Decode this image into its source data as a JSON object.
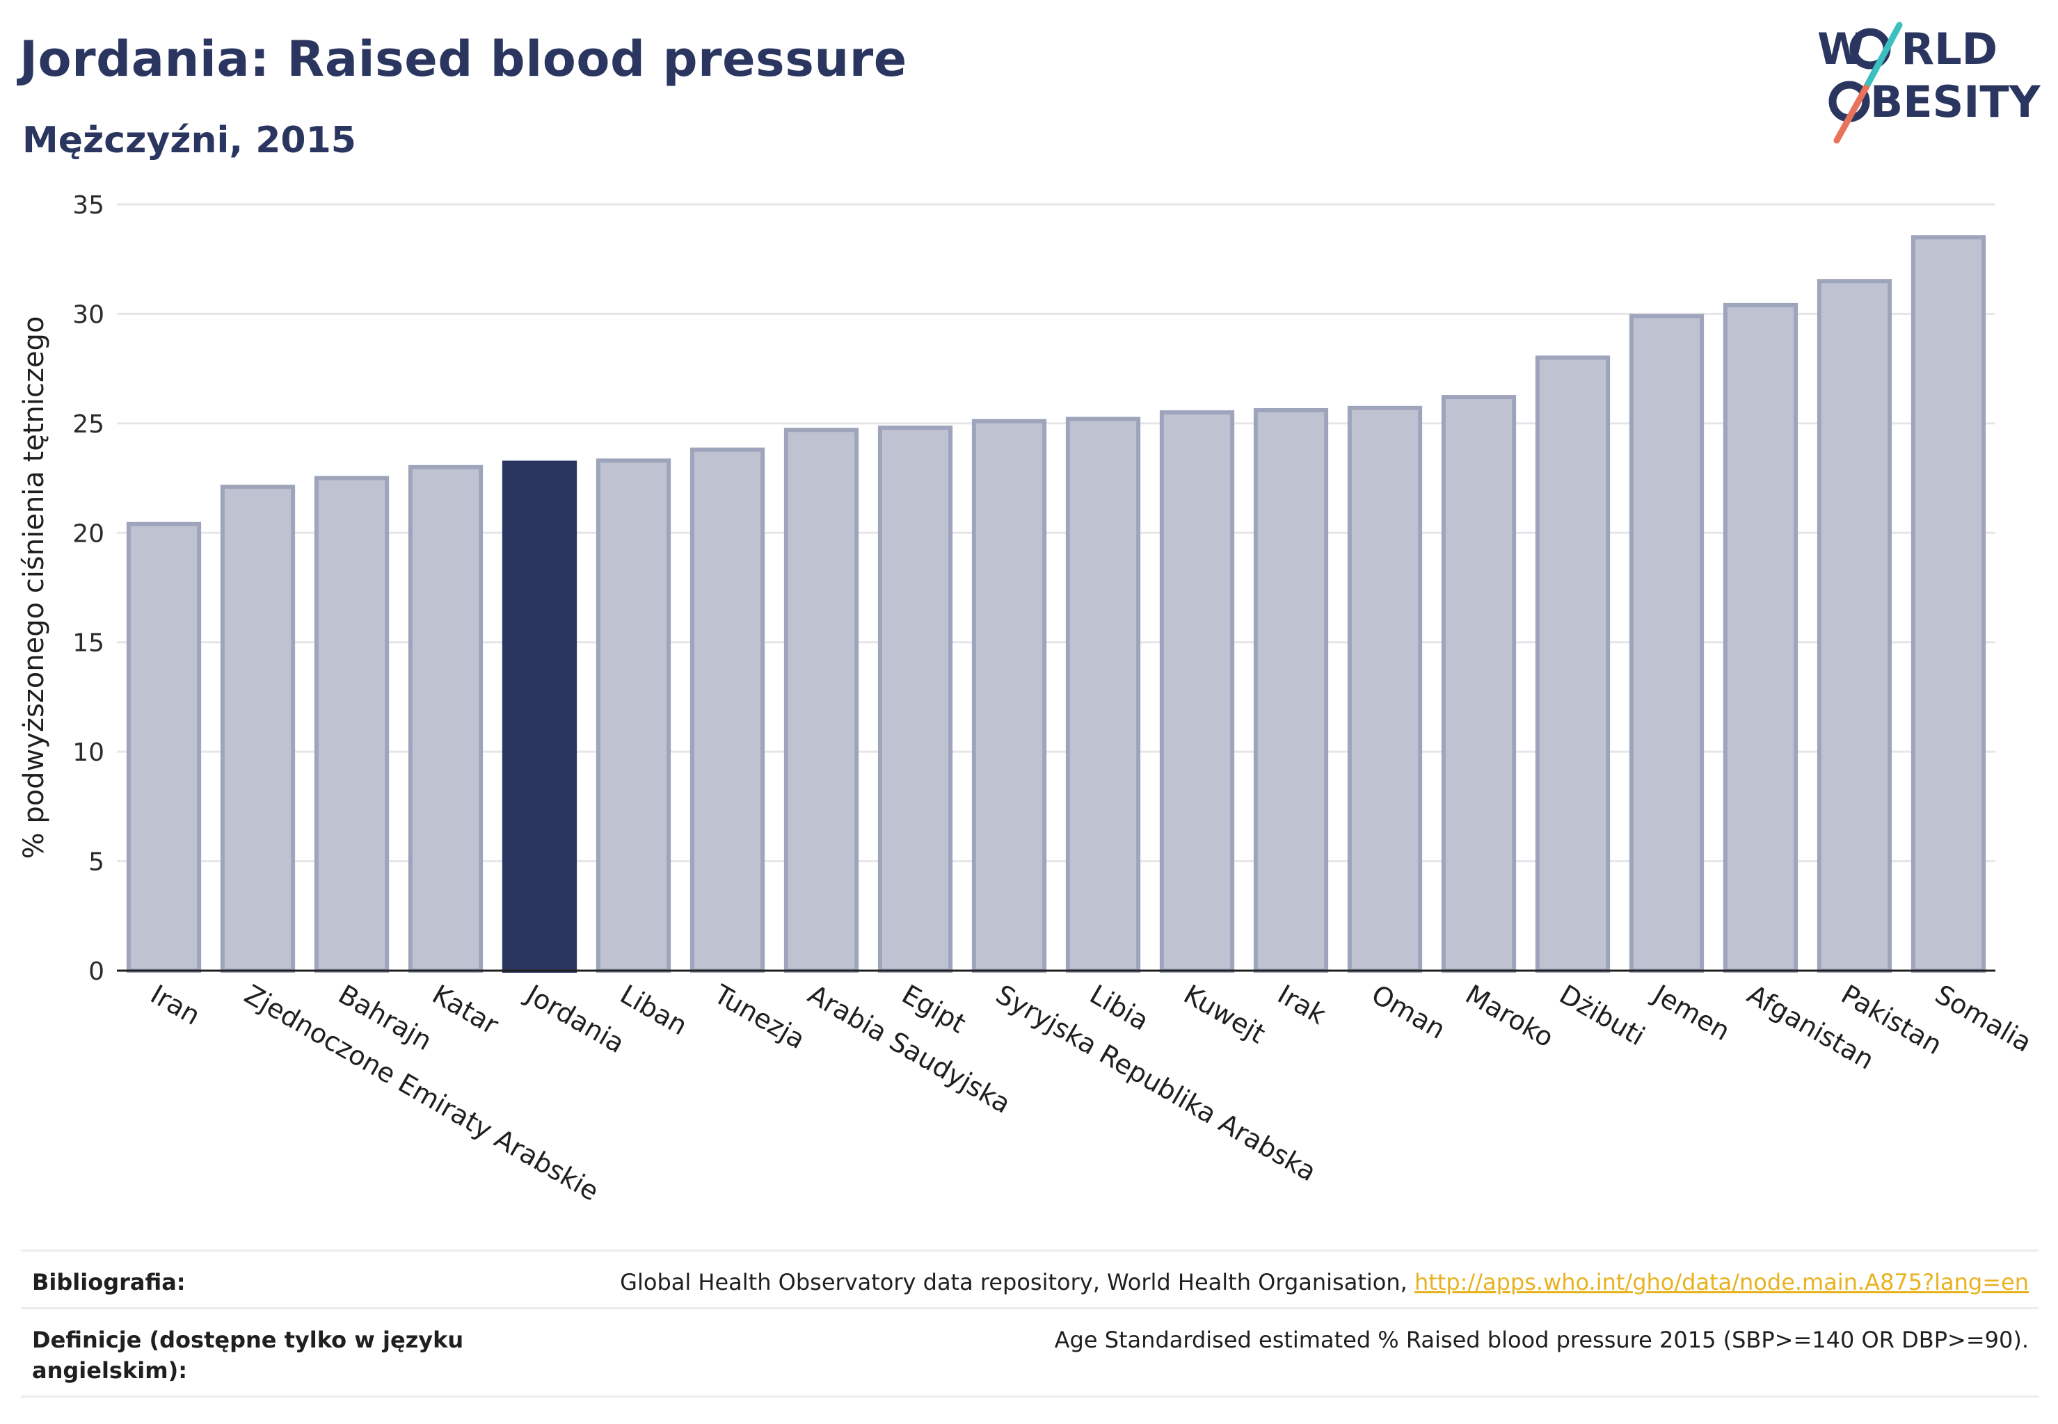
{
  "header": {
    "title": "Jordania: Raised blood pressure",
    "subtitle": "Mężczyźni, 2015"
  },
  "logo": {
    "line1": "W",
    "line1_rest": "RLD",
    "line2_rest": "BESITY",
    "accent_teal": "#3bbfbf",
    "accent_coral": "#e8735a",
    "color": "#2b3660"
  },
  "chart_data": {
    "type": "bar",
    "ylabel": "% podwyższonego ciśnienia tętniczego",
    "ylim": [
      0,
      35
    ],
    "yticks": [
      0,
      5,
      10,
      15,
      20,
      25,
      30,
      35
    ],
    "grid": true,
    "highlight": "Jordania",
    "highlight_color": "#2b3660",
    "bar_color": "#bfc3d1",
    "bar_edge_color": "#9ea4bb",
    "categories": [
      "Iran",
      "Zjednoczone Emiraty Arabskie",
      "Bahrajn",
      "Katar",
      "Jordania",
      "Liban",
      "Tunezja",
      "Arabia Saudyjska",
      "Egipt",
      "Syryjska Republika Arabska",
      "Libia",
      "Kuwejt",
      "Irak",
      "Oman",
      "Maroko",
      "Dżibuti",
      "Jemen",
      "Afganistan",
      "Pakistan",
      "Somalia"
    ],
    "values": [
      20.4,
      22.1,
      22.5,
      23.0,
      23.2,
      23.3,
      23.8,
      24.7,
      24.8,
      25.1,
      25.2,
      25.5,
      25.6,
      25.7,
      26.2,
      28.0,
      29.9,
      30.4,
      31.5,
      33.5
    ]
  },
  "footer": {
    "bibliography_label": "Bibliografia:",
    "bibliography_text": "Global Health Observatory data repository, World Health Organisation, ",
    "bibliography_link": "http://apps.who.int/gho/data/node.main.A875?lang=en",
    "definitions_label_line1": "Definicje (dostępne tylko w języku",
    "definitions_label_line2": "angielskim):",
    "definitions_text": "Age Standardised estimated % Raised blood pressure 2015 (SBP>=140 OR DBP>=90)."
  }
}
